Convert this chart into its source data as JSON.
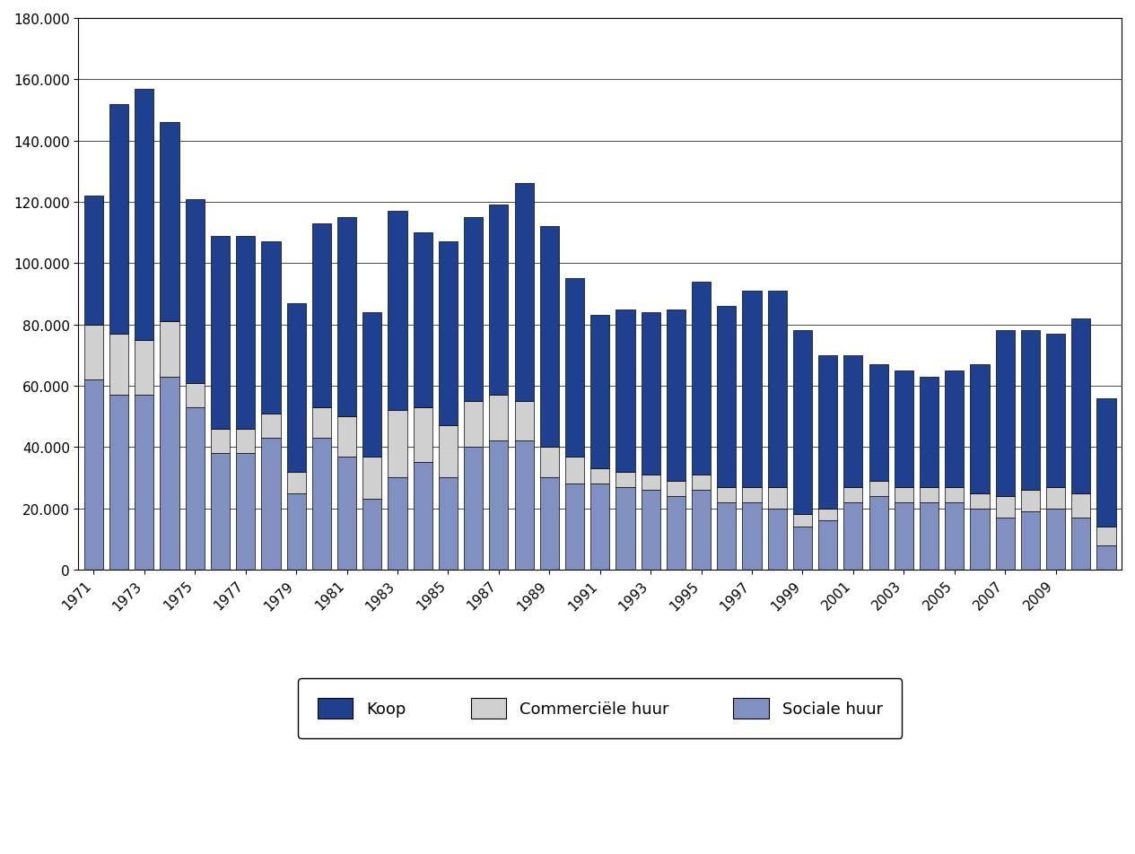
{
  "years": [
    1971,
    1972,
    1973,
    1974,
    1975,
    1976,
    1977,
    1978,
    1979,
    1980,
    1981,
    1982,
    1983,
    1984,
    1985,
    1986,
    1987,
    1988,
    1989,
    1990,
    1991,
    1992,
    1993,
    1994,
    1995,
    1996,
    1997,
    1998,
    1999,
    2000,
    2001,
    2002,
    2003,
    2004,
    2005,
    2006,
    2007,
    2008,
    2009,
    2010,
    2011
  ],
  "koop": [
    42000,
    75000,
    82000,
    65000,
    60000,
    63000,
    63000,
    56000,
    55000,
    60000,
    65000,
    47000,
    65000,
    57000,
    60000,
    60000,
    62000,
    71000,
    72000,
    58000,
    50000,
    53000,
    53000,
    56000,
    63000,
    59000,
    64000,
    64000,
    60000,
    50000,
    43000,
    38000,
    38000,
    36000,
    38000,
    42000,
    54000,
    52000,
    50000,
    57000,
    42000
  ],
  "comm_huur": [
    18000,
    20000,
    18000,
    18000,
    8000,
    8000,
    8000,
    8000,
    7000,
    10000,
    13000,
    14000,
    22000,
    18000,
    17000,
    15000,
    15000,
    13000,
    10000,
    9000,
    5000,
    5000,
    5000,
    5000,
    5000,
    5000,
    5000,
    7000,
    4000,
    4000,
    5000,
    5000,
    5000,
    5000,
    5000,
    5000,
    7000,
    7000,
    7000,
    8000,
    6000
  ],
  "sociale_huur": [
    62000,
    57000,
    57000,
    63000,
    53000,
    38000,
    38000,
    43000,
    25000,
    43000,
    37000,
    23000,
    30000,
    35000,
    30000,
    40000,
    42000,
    42000,
    30000,
    28000,
    28000,
    27000,
    26000,
    24000,
    26000,
    22000,
    22000,
    20000,
    14000,
    16000,
    22000,
    24000,
    22000,
    22000,
    22000,
    20000,
    17000,
    19000,
    20000,
    17000,
    8000
  ],
  "color_koop": "#1F3F8F",
  "color_comm_huur": "#D0D0D0",
  "color_sociale_huur": "#8090C0",
  "ylim": [
    0,
    180000
  ],
  "yticks": [
    0,
    20000,
    40000,
    60000,
    80000,
    100000,
    120000,
    140000,
    160000,
    180000
  ],
  "tick_years": [
    1971,
    1973,
    1975,
    1977,
    1979,
    1981,
    1983,
    1985,
    1987,
    1989,
    1991,
    1993,
    1995,
    1997,
    1999,
    2001,
    2003,
    2005,
    2007,
    2009
  ],
  "legend_labels": [
    "Koop",
    "Commerciële huur",
    "Sociale huur"
  ],
  "bar_width": 0.75
}
